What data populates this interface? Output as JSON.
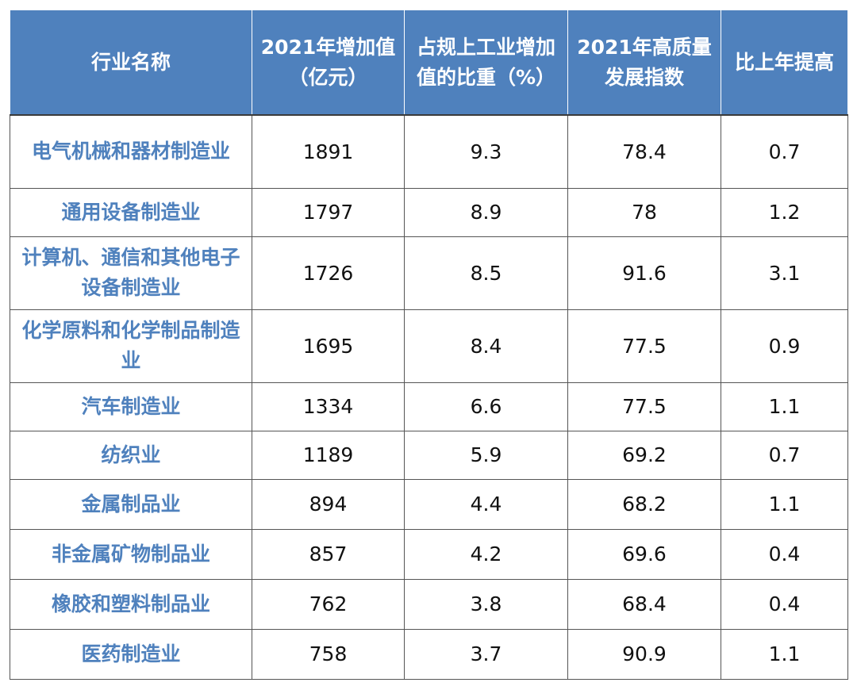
{
  "chart_data": {
    "type": "table",
    "columns": [
      "行业名称",
      "2021年增加值（亿元）",
      "占规上工业增加值的比重（%）",
      "2021年高质量发展指数",
      "比上年提高"
    ],
    "rows": [
      {
        "name": "电气机械和器材制造业",
        "value_added": "1891",
        "share": "9.3",
        "index": "78.4",
        "increase": "0.7"
      },
      {
        "name": "通用设备制造业",
        "value_added": "1797",
        "share": "8.9",
        "index": "78",
        "increase": "1.2"
      },
      {
        "name": "计算机、通信和其他电子设备制造业",
        "value_added": "1726",
        "share": "8.5",
        "index": "91.6",
        "increase": "3.1"
      },
      {
        "name": "化学原料和化学制品制造业",
        "value_added": "1695",
        "share": "8.4",
        "index": "77.5",
        "increase": "0.9"
      },
      {
        "name": "汽车制造业",
        "value_added": "1334",
        "share": "6.6",
        "index": "77.5",
        "increase": "1.1"
      },
      {
        "name": "纺织业",
        "value_added": "1189",
        "share": "5.9",
        "index": "69.2",
        "increase": "0.7"
      },
      {
        "name": "金属制品业",
        "value_added": "894",
        "share": "4.4",
        "index": "68.2",
        "increase": "1.1"
      },
      {
        "name": "非金属矿物制品业",
        "value_added": "857",
        "share": "4.2",
        "index": "69.6",
        "increase": "0.4"
      },
      {
        "name": "橡胶和塑料制品业",
        "value_added": "762",
        "share": "3.8",
        "index": "68.4",
        "increase": "0.4"
      },
      {
        "name": "医药制造业",
        "value_added": "758",
        "share": "3.7",
        "index": "90.9",
        "increase": "1.1"
      }
    ]
  },
  "colors": {
    "header_bg": "#4f81bd",
    "header_text": "#ffffff",
    "name_text": "#4f81bd",
    "border": "#555555"
  }
}
